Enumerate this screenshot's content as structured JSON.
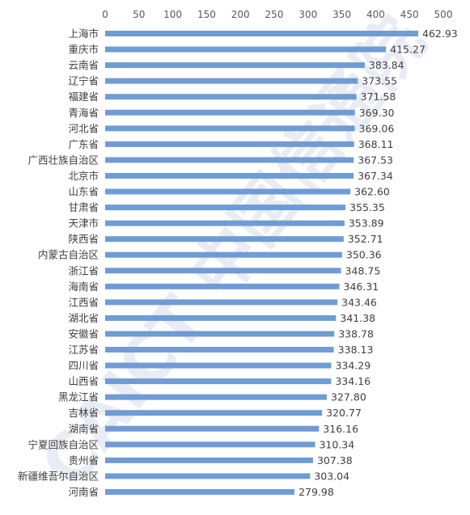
{
  "chart_data": {
    "type": "bar",
    "orientation": "horizontal",
    "categories": [
      "上海市",
      "重庆市",
      "云南省",
      "辽宁省",
      "福建省",
      "青海省",
      "河北省",
      "广东省",
      "广西壮族自治区",
      "北京市",
      "山东省",
      "甘肃省",
      "天津市",
      "陕西省",
      "内蒙古自治区",
      "浙江省",
      "海南省",
      "江西省",
      "湖北省",
      "安徽省",
      "江苏省",
      "四川省",
      "山西省",
      "黑龙江省",
      "吉林省",
      "湖南省",
      "宁夏回族自治区",
      "贵州省",
      "新疆维吾尔自治区",
      "河南省"
    ],
    "values": [
      462.93,
      415.27,
      383.84,
      373.55,
      371.58,
      369.3,
      369.06,
      368.11,
      367.53,
      367.34,
      362.6,
      355.35,
      353.89,
      352.71,
      350.36,
      348.75,
      346.31,
      343.46,
      341.38,
      338.78,
      338.13,
      334.29,
      334.16,
      327.8,
      320.77,
      316.16,
      310.34,
      307.38,
      303.04,
      279.98
    ],
    "data_labels": [
      "462.93",
      "415.27",
      "383.84",
      "373.55",
      "371.58",
      "369.30",
      "369.06",
      "368.11",
      "367.53",
      "367.34",
      "362.60",
      "355.35",
      "353.89",
      "352.71",
      "350.36",
      "348.75",
      "346.31",
      "343.46",
      "341.38",
      "338.78",
      "338.13",
      "334.29",
      "334.16",
      "327.80",
      "320.77",
      "316.16",
      "310.34",
      "307.38",
      "303.04",
      "279.98"
    ],
    "xlim": [
      0,
      500
    ],
    "x_ticks": [
      "0",
      "50",
      "100",
      "150",
      "200",
      "250",
      "300",
      "350",
      "400",
      "450",
      "500"
    ],
    "x_axis_position": "top",
    "grid": false,
    "legend": "none",
    "bar_color": "#6f9cd4",
    "watermark": "CAICT 中国信通院",
    "watermark_color": "#2f4f9a"
  }
}
